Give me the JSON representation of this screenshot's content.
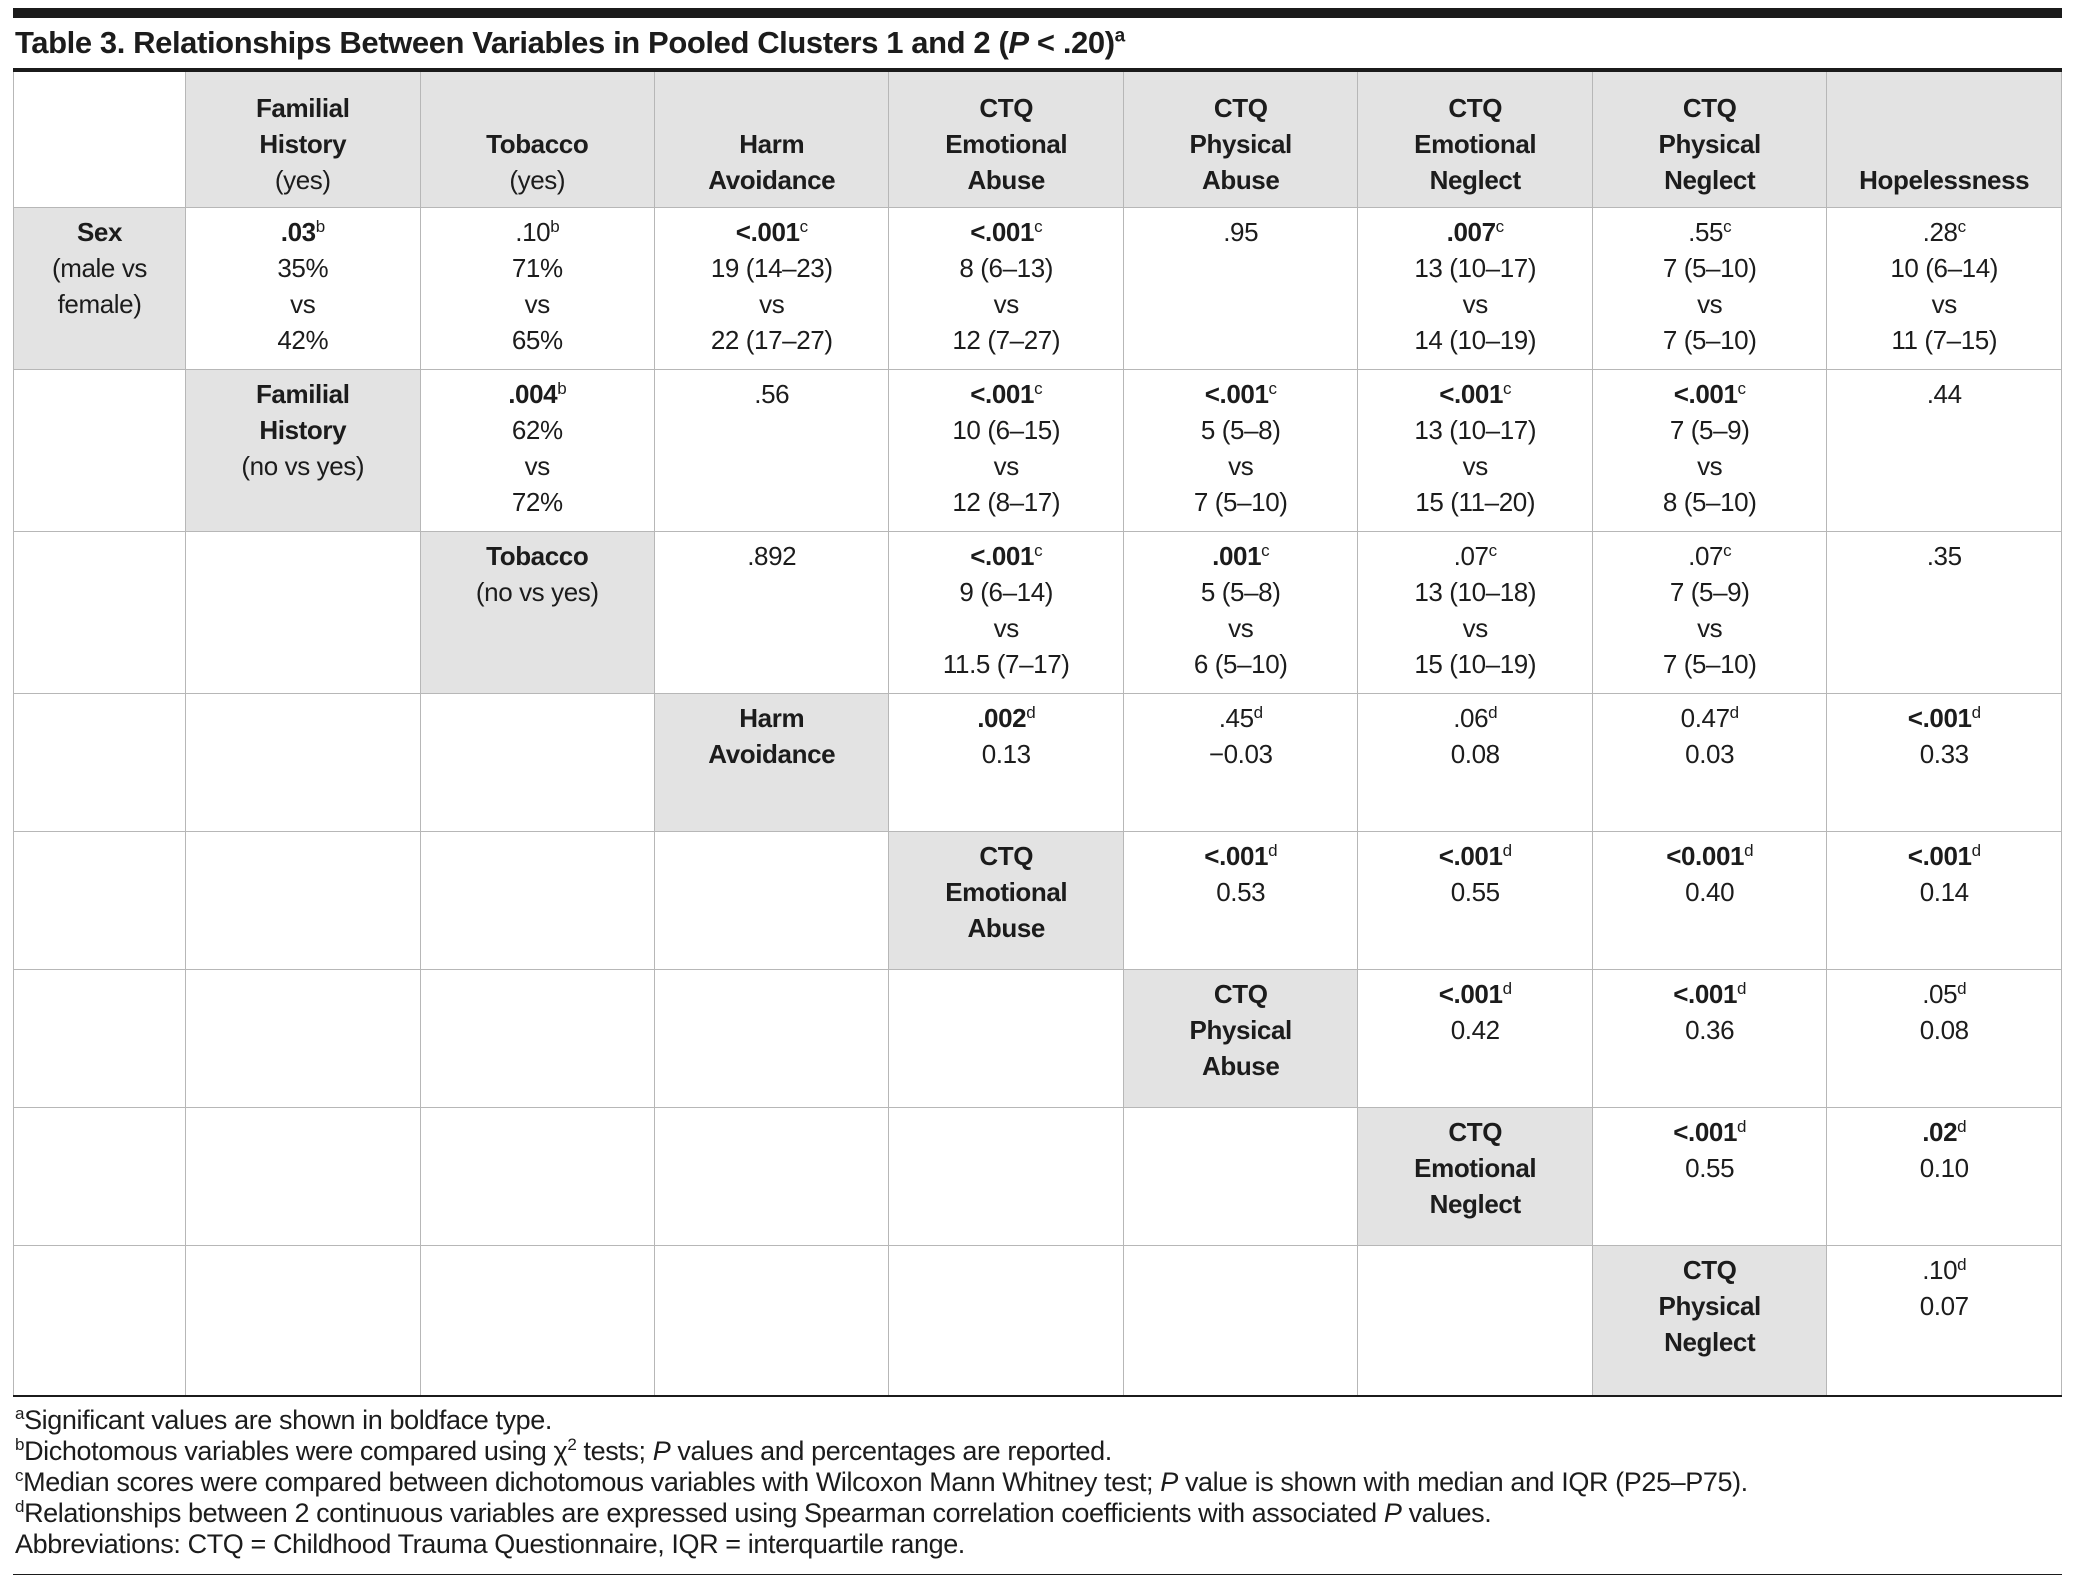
{
  "page": {
    "title_segments": [
      {
        "t": "Table 3. Relationships Between Variables in Pooled Clusters 1 and 2 ("
      },
      {
        "t": "P",
        "i": true
      },
      {
        "t": " < .20)"
      },
      {
        "t": "a",
        "sup": true
      }
    ]
  },
  "table": {
    "headers": [
      {
        "lines": [],
        "paren": ""
      },
      {
        "lines": [
          "Familial",
          "History"
        ],
        "paren": "(yes)"
      },
      {
        "lines": [
          "Tobacco"
        ],
        "paren": "(yes)"
      },
      {
        "lines": [
          "Harm",
          "Avoidance"
        ],
        "paren": ""
      },
      {
        "lines": [
          "CTQ",
          "Emotional",
          "Abuse"
        ],
        "paren": ""
      },
      {
        "lines": [
          "CTQ",
          "Physical",
          "Abuse"
        ],
        "paren": ""
      },
      {
        "lines": [
          "CTQ",
          "Emotional",
          "Neglect"
        ],
        "paren": ""
      },
      {
        "lines": [
          "CTQ",
          "Physical",
          "Neglect"
        ],
        "paren": ""
      },
      {
        "lines": [
          "Hopelessness"
        ],
        "paren": ""
      }
    ],
    "rows": [
      {
        "id": "sex",
        "label_col": 0,
        "tall": true,
        "label": {
          "lines": [
            "Sex"
          ],
          "paren": "(male vs female)"
        },
        "cells": [
          null,
          {
            "p": ".03",
            "sup": "b",
            "bold": true,
            "extra": [
              "35%",
              "vs",
              "42%"
            ]
          },
          {
            "p": ".10",
            "sup": "b",
            "extra": [
              "71%",
              "vs",
              "65%"
            ]
          },
          {
            "p": "<.001",
            "sup": "c",
            "bold": true,
            "extra": [
              "19 (14–23)",
              "vs",
              "22 (17–27)"
            ]
          },
          {
            "p": "<.001",
            "sup": "c",
            "bold": true,
            "extra": [
              "8 (6–13)",
              "vs",
              "12 (7–27)"
            ]
          },
          {
            "p": ".95"
          },
          {
            "p": ".007",
            "sup": "c",
            "bold": true,
            "extra": [
              "13 (10–17)",
              "vs",
              "14 (10–19)"
            ]
          },
          {
            "p": ".55",
            "sup": "c",
            "extra": [
              "7 (5–10)",
              "vs",
              "7 (5–10)"
            ]
          },
          {
            "p": ".28",
            "sup": "c",
            "extra": [
              "10 (6–14)",
              "vs",
              "11 (7–15)"
            ]
          }
        ]
      },
      {
        "id": "familial-history",
        "label_col": 1,
        "tall": true,
        "label": {
          "lines": [
            "Familial",
            "History"
          ],
          "paren": "(no vs yes)"
        },
        "cells": [
          null,
          null,
          {
            "p": ".004",
            "sup": "b",
            "bold": true,
            "extra": [
              "62%",
              "vs",
              "72%"
            ]
          },
          {
            "p": ".56"
          },
          {
            "p": "<.001",
            "sup": "c",
            "bold": true,
            "extra": [
              "10 (6–15)",
              "vs",
              "12 (8–17)"
            ]
          },
          {
            "p": "<.001",
            "sup": "c",
            "bold": true,
            "extra": [
              "5 (5–8)",
              "vs",
              "7 (5–10)"
            ]
          },
          {
            "p": "<.001",
            "sup": "c",
            "bold": true,
            "extra": [
              "13 (10–17)",
              "vs",
              "15 (11–20)"
            ]
          },
          {
            "p": "<.001",
            "sup": "c",
            "bold": true,
            "extra": [
              "7 (5–9)",
              "vs",
              "8 (5–10)"
            ]
          },
          {
            "p": ".44"
          }
        ]
      },
      {
        "id": "tobacco",
        "label_col": 2,
        "tall": true,
        "label": {
          "lines": [
            "Tobacco"
          ],
          "paren": "(no vs yes)"
        },
        "cells": [
          null,
          null,
          null,
          {
            "p": ".892"
          },
          {
            "p": "<.001",
            "sup": "c",
            "bold": true,
            "extra": [
              "9 (6–14)",
              "vs",
              "11.5 (7–17)"
            ]
          },
          {
            "p": ".001",
            "sup": "c",
            "bold": true,
            "extra": [
              "5 (5–8)",
              "vs",
              "6 (5–10)"
            ]
          },
          {
            "p": ".07",
            "sup": "c",
            "extra": [
              "13 (10–18)",
              "vs",
              "15 (10–19)"
            ]
          },
          {
            "p": ".07",
            "sup": "c",
            "extra": [
              "7 (5–9)",
              "vs",
              "7 (5–10)"
            ]
          },
          {
            "p": ".35"
          }
        ]
      },
      {
        "id": "harm-avoidance",
        "label_col": 3,
        "label": {
          "lines": [
            "Harm",
            "Avoidance"
          ],
          "paren": ""
        },
        "cells": [
          null,
          null,
          null,
          null,
          {
            "p": ".002",
            "sup": "d",
            "bold": true,
            "extra": [
              "0.13"
            ]
          },
          {
            "p": ".45",
            "sup": "d",
            "extra": [
              "−0.03"
            ]
          },
          {
            "p": ".06",
            "sup": "d",
            "extra": [
              "0.08"
            ]
          },
          {
            "p": "0.47",
            "sup": "d",
            "extra": [
              "0.03"
            ]
          },
          {
            "p": "<.001",
            "sup": "d",
            "bold": true,
            "extra": [
              "0.33"
            ]
          }
        ]
      },
      {
        "id": "ctq-emotional-abuse",
        "label_col": 4,
        "label": {
          "lines": [
            "CTQ",
            "Emotional",
            "Abuse"
          ],
          "paren": ""
        },
        "cells": [
          null,
          null,
          null,
          null,
          null,
          {
            "p": "<.001",
            "sup": "d",
            "bold": true,
            "extra": [
              "0.53"
            ]
          },
          {
            "p": "<.001",
            "sup": "d",
            "bold": true,
            "extra": [
              "0.55"
            ]
          },
          {
            "p": "<0.001",
            "sup": "d",
            "bold": true,
            "extra": [
              "0.40"
            ]
          },
          {
            "p": "<.001",
            "sup": "d",
            "bold": true,
            "extra": [
              "0.14"
            ]
          }
        ]
      },
      {
        "id": "ctq-physical-abuse",
        "label_col": 5,
        "label": {
          "lines": [
            "CTQ",
            "Physical",
            "Abuse"
          ],
          "paren": ""
        },
        "cells": [
          null,
          null,
          null,
          null,
          null,
          null,
          {
            "p": "<.001",
            "sup": "d",
            "bold": true,
            "extra": [
              "0.42"
            ]
          },
          {
            "p": "<.001",
            "sup": "d",
            "bold": true,
            "extra": [
              "0.36"
            ]
          },
          {
            "p": ".05",
            "sup": "d",
            "extra": [
              "0.08"
            ]
          }
        ]
      },
      {
        "id": "ctq-emotional-neglect",
        "label_col": 6,
        "label": {
          "lines": [
            "CTQ",
            "Emotional",
            "Neglect"
          ],
          "paren": ""
        },
        "cells": [
          null,
          null,
          null,
          null,
          null,
          null,
          null,
          {
            "p": "<.001",
            "sup": "d",
            "bold": true,
            "extra": [
              "0.55"
            ]
          },
          {
            "p": ".02",
            "sup": "d",
            "bold": true,
            "extra": [
              "0.10"
            ]
          }
        ]
      },
      {
        "id": "ctq-physical-neglect",
        "label_col": 7,
        "last": true,
        "label": {
          "lines": [
            "CTQ",
            "Physical",
            "Neglect"
          ],
          "paren": ""
        },
        "cells": [
          null,
          null,
          null,
          null,
          null,
          null,
          null,
          null,
          {
            "p": ".10",
            "sup": "d",
            "extra": [
              "0.07"
            ]
          }
        ]
      }
    ]
  },
  "footnotes": [
    {
      "id": "a",
      "segments": [
        {
          "t": "a",
          "sup": true
        },
        {
          "t": "Significant values are shown in boldface type."
        }
      ]
    },
    {
      "id": "b",
      "segments": [
        {
          "t": "b",
          "sup": true
        },
        {
          "t": "Dichotomous variables were compared using χ"
        },
        {
          "t": "2",
          "sup": true
        },
        {
          "t": " tests; "
        },
        {
          "t": "P",
          "i": true
        },
        {
          "t": " values and percentages are reported."
        }
      ]
    },
    {
      "id": "c",
      "segments": [
        {
          "t": "c",
          "sup": true
        },
        {
          "t": "Median scores were compared between dichotomous variables with Wilcoxon Mann Whitney test; "
        },
        {
          "t": "P",
          "i": true
        },
        {
          "t": " value is shown with median and IQR (P25–P75)."
        }
      ]
    },
    {
      "id": "d",
      "segments": [
        {
          "t": "d",
          "sup": true
        },
        {
          "t": "Relationships between 2 continuous variables are expressed using Spearman correlation coefficients with associated "
        },
        {
          "t": "P",
          "i": true
        },
        {
          "t": " values."
        }
      ]
    },
    {
      "id": "abbreviations",
      "segments": [
        {
          "t": "Abbreviations: CTQ = Childhood Trauma Questionnaire, IQR = interquartile range."
        }
      ]
    }
  ]
}
